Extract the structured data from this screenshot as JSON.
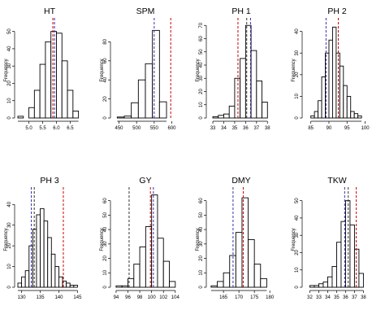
{
  "ylabel": "Frequency",
  "chart_data": [
    {
      "type": "bar",
      "title": "HT",
      "x_ticks": [
        5.0,
        5.5,
        6.0,
        6.5
      ],
      "xlim": [
        4.6,
        6.9
      ],
      "y_ticks": [
        0,
        10,
        20,
        30,
        40,
        50
      ],
      "ylim": [
        0,
        55
      ],
      "bins": [
        4.6,
        4.8,
        5.0,
        5.2,
        5.4,
        5.6,
        5.8,
        6.0,
        6.2,
        6.4,
        6.6,
        6.8
      ],
      "counts": [
        1,
        0,
        6,
        16,
        31,
        44,
        50,
        49,
        33,
        16,
        4
      ],
      "lines": [
        {
          "x": 5.87,
          "color": "#cc0000"
        },
        {
          "x": 5.93,
          "color": "#3333aa"
        }
      ]
    },
    {
      "type": "bar",
      "title": "SPM",
      "x_ticks": [
        450,
        500,
        550,
        600
      ],
      "xlim": [
        435,
        615
      ],
      "y_ticks": [
        0,
        20,
        40,
        60,
        80
      ],
      "ylim": [
        0,
        100
      ],
      "bins": [
        445,
        465,
        485,
        505,
        525,
        545,
        565,
        585
      ],
      "counts": [
        1,
        2,
        16,
        40,
        57,
        92,
        17
      ],
      "lines": [
        {
          "x": 550,
          "color": "#3333aa"
        },
        {
          "x": 597,
          "color": "#cc0000"
        }
      ]
    },
    {
      "type": "bar",
      "title": "PH 1",
      "x_ticks": [
        33,
        34,
        35,
        36,
        37,
        38
      ],
      "xlim": [
        32.7,
        38.5
      ],
      "y_ticks": [
        0,
        10,
        20,
        30,
        40,
        50,
        60,
        70
      ],
      "ylim": [
        0,
        72
      ],
      "bins": [
        33,
        33.5,
        34,
        34.5,
        35,
        35.5,
        36,
        36.5,
        37,
        37.5,
        38
      ],
      "counts": [
        1,
        2,
        3,
        9,
        30,
        45,
        70,
        51,
        28,
        12
      ],
      "lines": [
        {
          "x": 35.3,
          "color": "#cc0000"
        },
        {
          "x": 36.1,
          "color": "#333333"
        },
        {
          "x": 36.45,
          "color": "#3333aa"
        }
      ]
    },
    {
      "type": "bar",
      "title": "PH 2",
      "x_ticks": [
        85,
        90,
        95,
        100
      ],
      "xlim": [
        83.5,
        101
      ],
      "y_ticks": [
        0,
        10,
        20,
        30,
        40
      ],
      "ylim": [
        0,
        44
      ],
      "bins": [
        85,
        86,
        87,
        88,
        89,
        90,
        91,
        92,
        93,
        94,
        95,
        96,
        97,
        98,
        99
      ],
      "counts": [
        1,
        3,
        8,
        19,
        30,
        36,
        42,
        30,
        24,
        15,
        10,
        3,
        2,
        1
      ],
      "lines": [
        {
          "x": 89.2,
          "color": "#3333aa"
        },
        {
          "x": 92.6,
          "color": "#cc0000"
        }
      ]
    },
    {
      "type": "bar",
      "title": "PH 3",
      "x_ticks": [
        130,
        135,
        140,
        145
      ],
      "xlim": [
        129,
        146
      ],
      "y_ticks": [
        0,
        10,
        20,
        30,
        40
      ],
      "ylim": [
        0,
        46
      ],
      "bins": [
        129,
        130,
        131,
        132,
        133,
        134,
        135,
        136,
        137,
        138,
        139,
        140,
        141,
        142,
        143,
        144,
        145
      ],
      "counts": [
        2,
        5,
        8,
        20,
        28,
        35,
        38,
        32,
        24,
        16,
        10,
        5,
        3,
        2,
        1,
        1
      ],
      "lines": [
        {
          "x": 132.6,
          "color": "#3333aa"
        },
        {
          "x": 133.4,
          "color": "#333333"
        },
        {
          "x": 141.2,
          "color": "#cc0000"
        }
      ]
    },
    {
      "type": "bar",
      "title": "GY",
      "x_ticks": [
        94,
        96,
        98,
        100,
        102,
        104
      ],
      "xlim": [
        93.6,
        104.3
      ],
      "y_ticks": [
        0,
        10,
        20,
        30,
        40,
        50,
        60
      ],
      "ylim": [
        0,
        66
      ],
      "bins": [
        94,
        95,
        96,
        97,
        98,
        99,
        100,
        101,
        102,
        103,
        104
      ],
      "counts": [
        1,
        1,
        6,
        16,
        28,
        42,
        64,
        34,
        18,
        4
      ],
      "lines": [
        {
          "x": 96.2,
          "color": "#333333"
        },
        {
          "x": 99.8,
          "color": "#cc0000"
        },
        {
          "x": 100.3,
          "color": "#3333aa"
        }
      ]
    },
    {
      "type": "bar",
      "title": "DMY",
      "x_ticks": [
        165,
        170,
        175,
        180
      ],
      "xlim": [
        160.5,
        181
      ],
      "y_ticks": [
        0,
        10,
        20,
        30,
        40,
        50,
        60
      ],
      "ylim": [
        0,
        66
      ],
      "bins": [
        161,
        163,
        165,
        167,
        169,
        171,
        173,
        175,
        177,
        179
      ],
      "counts": [
        1,
        4,
        10,
        22,
        38,
        62,
        33,
        16,
        6
      ],
      "lines": [
        {
          "x": 168.1,
          "color": "#3333aa"
        },
        {
          "x": 171.4,
          "color": "#cc0000"
        }
      ]
    },
    {
      "type": "bar",
      "title": "TKW",
      "x_ticks": [
        32,
        33,
        34,
        35,
        36,
        37,
        38
      ],
      "xlim": [
        31.5,
        38.6
      ],
      "y_ticks": [
        0,
        10,
        20,
        30,
        40,
        50
      ],
      "ylim": [
        0,
        55
      ],
      "bins": [
        32,
        32.5,
        33,
        33.5,
        34,
        34.5,
        35,
        35.5,
        36,
        36.5,
        37,
        37.5,
        38
      ],
      "counts": [
        1,
        1,
        2,
        3,
        6,
        12,
        26,
        38,
        50,
        36,
        22,
        8
      ],
      "lines": [
        {
          "x": 35.9,
          "color": "#3333aa"
        },
        {
          "x": 36.3,
          "color": "#333333"
        },
        {
          "x": 37.2,
          "color": "#cc0000"
        }
      ]
    }
  ]
}
